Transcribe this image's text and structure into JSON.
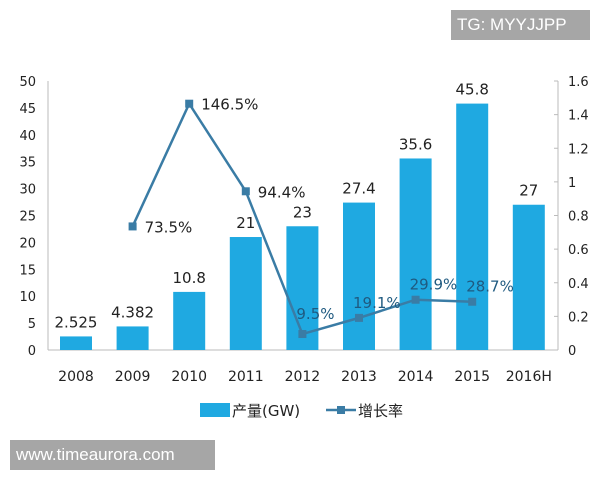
{
  "watermarks": {
    "top": "TG: MYYJJPP",
    "bottom": "www.timeaurora.com"
  },
  "chart_data": {
    "type": "bar+line",
    "categories": [
      "2008",
      "2009",
      "2010",
      "2011",
      "2012",
      "2013",
      "2014",
      "2015",
      "2016H"
    ],
    "series": [
      {
        "name": "产量(GW)",
        "type": "bar",
        "axis": "left",
        "color": "#1fa9e1",
        "values": [
          2.525,
          4.382,
          10.8,
          21,
          23,
          27.4,
          35.6,
          45.8,
          27
        ],
        "labels": [
          "2.525",
          "4.382",
          "10.8",
          "21",
          "23",
          "27.4",
          "35.6",
          "45.8",
          "27"
        ]
      },
      {
        "name": "增长率",
        "type": "line",
        "axis": "right",
        "color": "#3a7ca5",
        "values": [
          null,
          0.735,
          1.465,
          0.944,
          0.095,
          0.191,
          0.299,
          0.287,
          null
        ],
        "labels": [
          "",
          "73.5%",
          "146.5%",
          "94.4%",
          "9.5%",
          "19.1%",
          "29.9%",
          "28.7%",
          ""
        ]
      }
    ],
    "y_left": {
      "range": [
        0,
        50
      ],
      "ticks": [
        "0",
        "5",
        "10",
        "15",
        "20",
        "25",
        "30",
        "35",
        "40",
        "45",
        "50"
      ]
    },
    "y_right": {
      "range": [
        0,
        1.6
      ],
      "ticks": [
        "0",
        "0.2",
        "0.4",
        "0.6",
        "0.8",
        "1",
        "1.2",
        "1.4",
        "1.6"
      ]
    },
    "grid": false,
    "legend": "bottom"
  }
}
